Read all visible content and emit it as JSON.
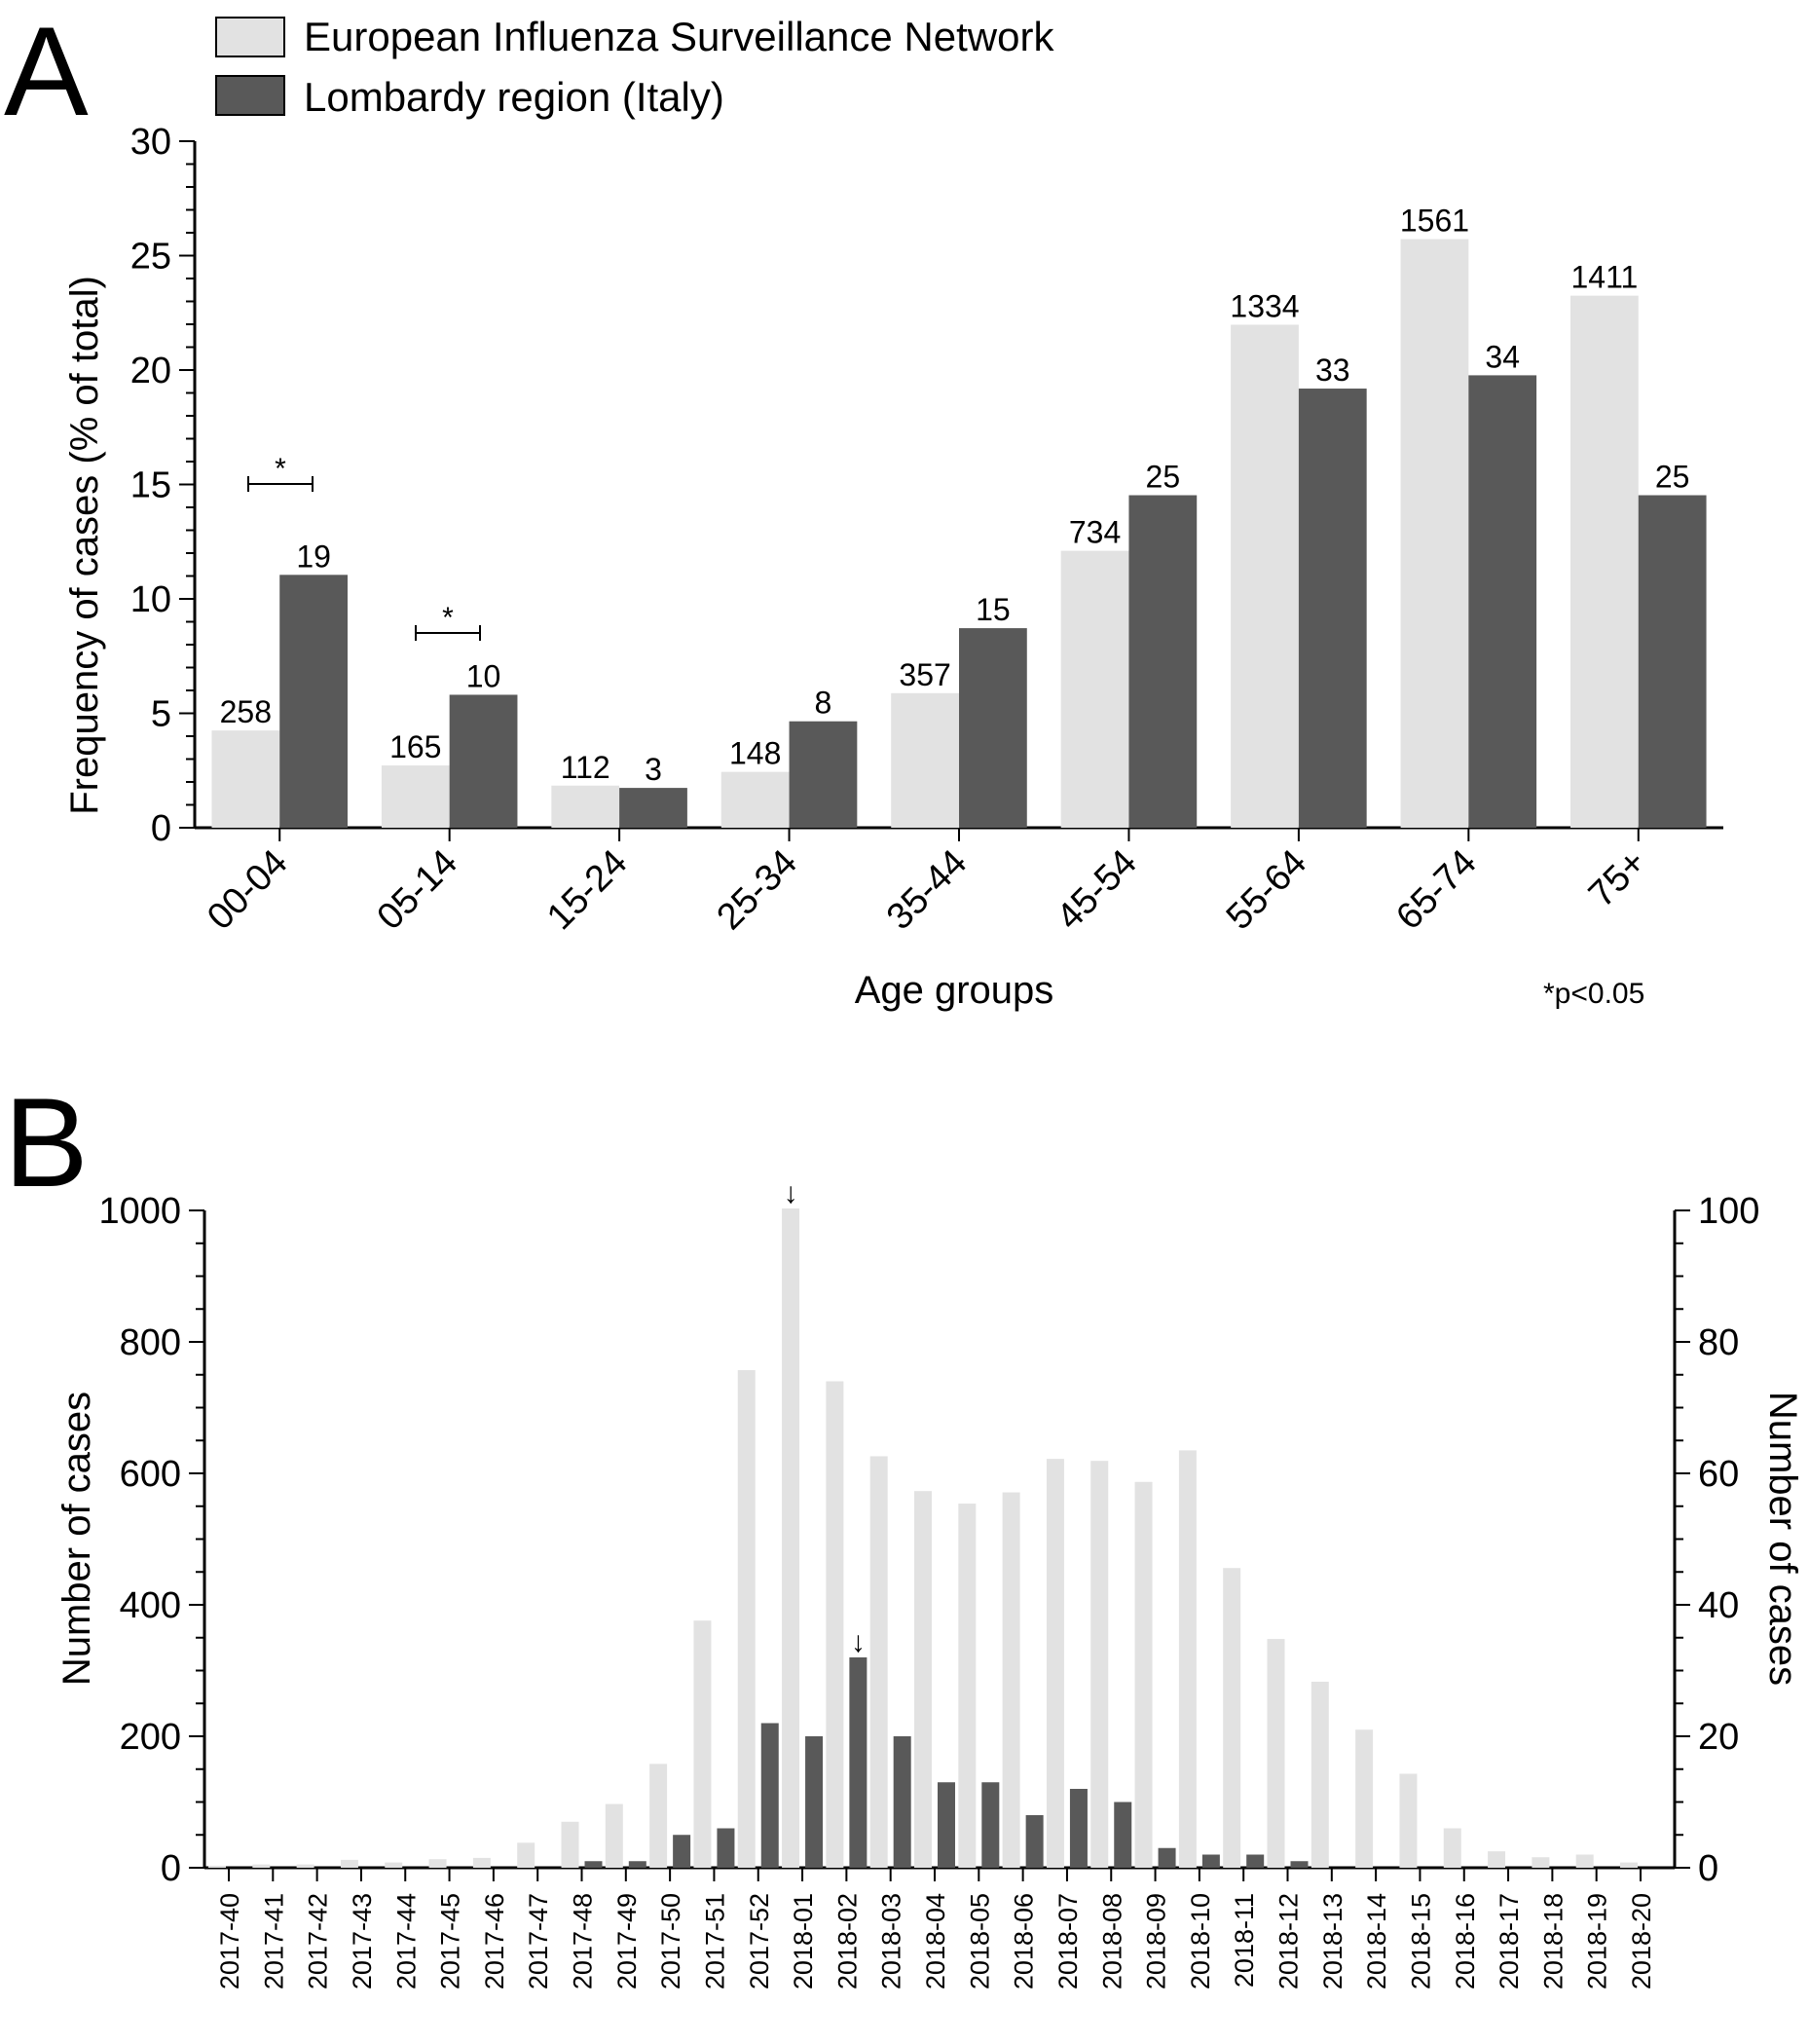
{
  "colors": {
    "eisn": "#e2e2e2",
    "lombardy": "#595959",
    "axis": "#000000"
  },
  "panel_a": {
    "letter": "A",
    "legend": [
      "European Influenza Surveillance Network",
      "Lombardy region (Italy)"
    ],
    "significance_note": "*p<0.05",
    "significance_marks": [
      {
        "label": "*",
        "category": "00-04"
      },
      {
        "label": "*",
        "category": "05-14"
      }
    ]
  },
  "panel_b": {
    "letter": "B",
    "peak_markers": [
      "↓",
      "↓"
    ]
  },
  "chart_data": [
    {
      "type": "bar",
      "title": "",
      "xlabel": "Age groups",
      "ylabel": "Frequency of cases (% of total)",
      "ylim": [
        0,
        30
      ],
      "yticks": [
        "0",
        "5",
        "10",
        "15",
        "20",
        "25",
        "30"
      ],
      "grid": false,
      "legend_position": "top-left",
      "categories": [
        "00-04",
        "05-14",
        "15-24",
        "25-34",
        "35-44",
        "45-54",
        "55-64",
        "65-74",
        "75+"
      ],
      "series": [
        {
          "name": "European Influenza Surveillance Network",
          "values": [
            4.25,
            2.72,
            1.84,
            2.44,
            5.88,
            12.1,
            21.98,
            25.72,
            23.25
          ],
          "labels": [
            "258",
            "165",
            "112",
            "148",
            "357",
            "734",
            "1334",
            "1561",
            "1411"
          ]
        },
        {
          "name": "Lombardy region (Italy)",
          "values": [
            11.05,
            5.81,
            1.74,
            4.65,
            8.72,
            14.53,
            19.19,
            19.77,
            14.53
          ],
          "labels": [
            "19",
            "10",
            "3",
            "8",
            "15",
            "25",
            "33",
            "34",
            "25"
          ]
        }
      ]
    },
    {
      "type": "bar",
      "title": "",
      "xlabel": "",
      "ylabel": "Number of cases",
      "ylabel_right": "Number of cases",
      "ylim": [
        0,
        1000
      ],
      "ylim_right": [
        0,
        100
      ],
      "yticks": [
        "0",
        "200",
        "400",
        "600",
        "800",
        "1000"
      ],
      "yticks_right": [
        "0",
        "20",
        "40",
        "60",
        "80",
        "100"
      ],
      "grid": false,
      "categories": [
        "2017-40",
        "2017-41",
        "2017-42",
        "2017-43",
        "2017-44",
        "2017-45",
        "2017-46",
        "2017-47",
        "2017-48",
        "2017-49",
        "2017-50",
        "2017-51",
        "2017-52",
        "2018-01",
        "2018-02",
        "2018-03",
        "2018-04",
        "2018-05",
        "2018-06",
        "2018-07",
        "2018-08",
        "2018-09",
        "2018-10",
        "2018-11",
        "2018-12",
        "2018-13",
        "2018-14",
        "2018-15",
        "2018-16",
        "2018-17",
        "2018-18",
        "2018-19",
        "2018-20"
      ],
      "series": [
        {
          "name": "European Influenza Surveillance Network",
          "axis": "left",
          "values": [
            3,
            5,
            5,
            12,
            8,
            13,
            15,
            38,
            70,
            97,
            158,
            376,
            757,
            1003,
            740,
            626,
            573,
            554,
            571,
            622,
            619,
            587,
            635,
            456,
            348,
            283,
            210,
            143,
            60,
            25,
            16,
            20,
            8
          ]
        },
        {
          "name": "Lombardy region (Italy)",
          "axis": "right",
          "values": [
            0,
            0,
            0,
            0,
            0,
            0,
            0,
            0,
            1,
            1,
            5,
            6,
            22,
            20,
            32,
            20,
            13,
            13,
            8,
            12,
            10,
            3,
            2,
            2,
            1,
            0,
            0,
            0,
            0,
            0,
            0,
            0,
            0
          ]
        }
      ]
    }
  ]
}
